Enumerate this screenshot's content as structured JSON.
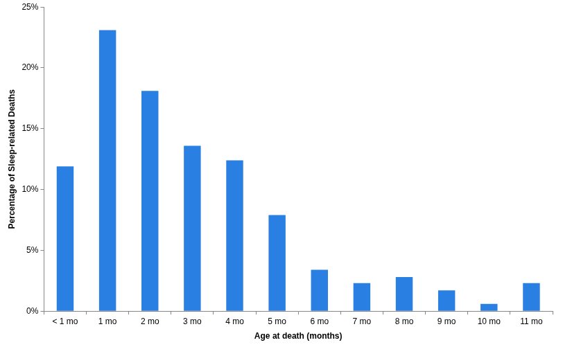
{
  "chart_data": {
    "type": "bar",
    "x_label": "Age at death (months)",
    "y_label": "Percentage of Sleep-related Deaths",
    "categories": [
      "< 1 mo",
      "1 mo",
      "2 mo",
      "3 mo",
      "4 mo",
      "5 mo",
      "6 mo",
      "7 mo",
      "8 mo",
      "9 mo",
      "10 mo",
      "11 mo"
    ],
    "values": [
      11.9,
      23.1,
      18.1,
      13.6,
      12.4,
      7.9,
      3.4,
      2.3,
      2.8,
      1.7,
      0.6,
      2.3
    ],
    "color": "#2a7fe3",
    "ylim": [
      0,
      25
    ],
    "yticks": [
      {
        "value": 0,
        "label": "0%"
      },
      {
        "value": 5,
        "label": "5%"
      },
      {
        "value": 10,
        "label": "10%"
      },
      {
        "value": 15,
        "label": "15%"
      },
      {
        "value": 20,
        "label": "20%"
      },
      {
        "value": 25,
        "label": "25%"
      }
    ],
    "grid": false
  }
}
